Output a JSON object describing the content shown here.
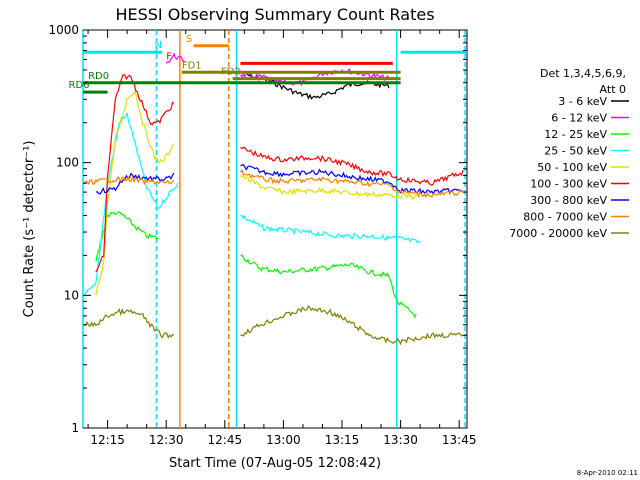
{
  "chart_data": {
    "type": "line",
    "title": "HESSI Observing Summary Count Rates",
    "xlabel": "Start Time (07-Aug-05 12:08:42)",
    "ylabel": "Count Rate (s⁻¹ detector⁻¹)",
    "yscale": "log",
    "ylim": [
      1,
      1000
    ],
    "xlim": [
      "12:08:42",
      "13:47:00"
    ],
    "x_ticks": [
      "12:15",
      "12:30",
      "12:45",
      "13:00",
      "13:15",
      "13:30",
      "13:45"
    ],
    "y_ticks": [
      "1",
      "10",
      "100",
      "1000"
    ],
    "grid": false,
    "legend_title": [
      "Det 1,3,4,5,6,9,",
      "Att 0"
    ],
    "legend_position": "right",
    "series": [
      {
        "name": "3 - 6 keV",
        "color": "#000000",
        "points": [
          [
            "12:49",
            490
          ],
          [
            "12:52",
            440
          ],
          [
            "12:56",
            420
          ],
          [
            "13:00",
            370
          ],
          [
            "13:04",
            330
          ],
          [
            "13:08",
            310
          ],
          [
            "13:12",
            330
          ],
          [
            "13:16",
            380
          ],
          [
            "13:20",
            400
          ],
          [
            "13:27",
            380
          ]
        ]
      },
      {
        "name": "6 - 12 keV",
        "color": "#ff00ff",
        "points": [
          [
            "12:30",
            560
          ],
          [
            "12:32",
            640
          ],
          [
            "12:35",
            580
          ],
          [
            "12:49",
            460
          ],
          [
            "12:55",
            440
          ],
          [
            "13:00",
            400
          ],
          [
            "13:05",
            400
          ],
          [
            "13:10",
            470
          ],
          [
            "13:15",
            500
          ],
          [
            "13:20",
            470
          ],
          [
            "13:27",
            430
          ]
        ]
      },
      {
        "name": "12 - 25 keV",
        "color": "#00ff00",
        "points": [
          [
            "12:12",
            18
          ],
          [
            "12:15",
            40
          ],
          [
            "12:17",
            42
          ],
          [
            "12:19",
            40
          ],
          [
            "12:22",
            33
          ],
          [
            "12:25",
            28
          ],
          [
            "12:28",
            27
          ],
          [
            "12:49",
            20
          ],
          [
            "12:54",
            16
          ],
          [
            "13:00",
            15
          ],
          [
            "13:10",
            16
          ],
          [
            "13:17",
            17
          ],
          [
            "13:22",
            15
          ],
          [
            "13:27",
            14
          ],
          [
            "13:29",
            9
          ],
          [
            "13:34",
            7
          ],
          [
            "13:46",
            7
          ]
        ]
      },
      {
        "name": "25 - 50 keV",
        "color": "#00ffff",
        "points": [
          [
            "12:09",
            10
          ],
          [
            "12:12",
            12
          ],
          [
            "12:15",
            70
          ],
          [
            "12:18",
            200
          ],
          [
            "12:20",
            230
          ],
          [
            "12:22",
            140
          ],
          [
            "12:25",
            65
          ],
          [
            "12:28",
            45
          ],
          [
            "12:30",
            55
          ],
          [
            "12:33",
            70
          ],
          [
            "12:49",
            40
          ],
          [
            "12:55",
            32
          ],
          [
            "13:05",
            30
          ],
          [
            "13:15",
            28
          ],
          [
            "13:22",
            28
          ],
          [
            "13:27",
            27
          ],
          [
            "13:29",
            27
          ],
          [
            "13:35",
            25
          ],
          [
            "13:46",
            26
          ]
        ]
      },
      {
        "name": "50 - 100 keV",
        "color": "#e0e000",
        "points": [
          [
            "12:12",
            10
          ],
          [
            "12:14",
            18
          ],
          [
            "12:15",
            50
          ],
          [
            "12:17",
            150
          ],
          [
            "12:20",
            300
          ],
          [
            "12:22",
            350
          ],
          [
            "12:24",
            200
          ],
          [
            "12:27",
            110
          ],
          [
            "12:29",
            100
          ],
          [
            "12:32",
            140
          ],
          [
            "12:49",
            80
          ],
          [
            "12:55",
            65
          ],
          [
            "13:00",
            60
          ],
          [
            "13:10",
            62
          ],
          [
            "13:20",
            58
          ],
          [
            "13:27",
            57
          ],
          [
            "13:35",
            55
          ],
          [
            "13:46",
            58
          ]
        ]
      },
      {
        "name": "100 - 300 keV",
        "color": "#ff0000",
        "points": [
          [
            "12:12",
            15
          ],
          [
            "12:14",
            20
          ],
          [
            "12:15",
            80
          ],
          [
            "12:17",
            300
          ],
          [
            "12:19",
            450
          ],
          [
            "12:21",
            440
          ],
          [
            "12:23",
            320
          ],
          [
            "12:26",
            200
          ],
          [
            "12:28",
            200
          ],
          [
            "12:30",
            240
          ],
          [
            "12:32",
            280
          ],
          [
            "12:49",
            130
          ],
          [
            "12:55",
            110
          ],
          [
            "13:00",
            105
          ],
          [
            "13:08",
            110
          ],
          [
            "13:15",
            100
          ],
          [
            "13:22",
            85
          ],
          [
            "13:27",
            82
          ],
          [
            "13:30",
            75
          ],
          [
            "13:38",
            70
          ],
          [
            "13:46",
            85
          ]
        ]
      },
      {
        "name": "300 - 800 keV",
        "color": "#0000ff",
        "points": [
          [
            "12:12",
            60
          ],
          [
            "12:15",
            62
          ],
          [
            "12:17",
            64
          ],
          [
            "12:19",
            75
          ],
          [
            "12:21",
            80
          ],
          [
            "12:23",
            78
          ],
          [
            "12:26",
            76
          ],
          [
            "12:28",
            75
          ],
          [
            "12:30",
            75
          ],
          [
            "12:32",
            80
          ],
          [
            "12:49",
            95
          ],
          [
            "12:55",
            85
          ],
          [
            "13:00",
            82
          ],
          [
            "13:10",
            85
          ],
          [
            "13:20",
            76
          ],
          [
            "13:27",
            72
          ],
          [
            "13:30",
            62
          ],
          [
            "13:38",
            60
          ],
          [
            "13:46",
            62
          ]
        ]
      },
      {
        "name": "800 - 7000 keV",
        "color": "#ff8000",
        "points": [
          [
            "12:09",
            70
          ],
          [
            "12:12",
            72
          ],
          [
            "12:15",
            74
          ],
          [
            "12:18",
            75
          ],
          [
            "12:21",
            75
          ],
          [
            "12:24",
            72
          ],
          [
            "12:27",
            72
          ],
          [
            "12:30",
            70
          ],
          [
            "12:32",
            72
          ],
          [
            "12:49",
            85
          ],
          [
            "12:55",
            75
          ],
          [
            "13:00",
            72
          ],
          [
            "13:10",
            75
          ],
          [
            "13:20",
            70
          ],
          [
            "13:27",
            68
          ],
          [
            "13:30",
            60
          ],
          [
            "13:38",
            57
          ],
          [
            "13:46",
            60
          ]
        ]
      },
      {
        "name": "7000 - 20000 keV",
        "color": "#808000",
        "points": [
          [
            "12:09",
            6
          ],
          [
            "12:12",
            6
          ],
          [
            "12:15",
            7
          ],
          [
            "12:18",
            7.5
          ],
          [
            "12:21",
            7.5
          ],
          [
            "12:24",
            7
          ],
          [
            "12:27",
            5.5
          ],
          [
            "12:29",
            5
          ],
          [
            "12:32",
            5
          ],
          [
            "12:49",
            5
          ],
          [
            "12:54",
            6
          ],
          [
            "13:00",
            7
          ],
          [
            "13:06",
            8
          ],
          [
            "13:12",
            7.5
          ],
          [
            "13:18",
            6
          ],
          [
            "13:22",
            5
          ],
          [
            "13:27",
            4.5
          ],
          [
            "13:30",
            4.5
          ],
          [
            "13:38",
            5
          ],
          [
            "13:46",
            5
          ]
        ]
      }
    ],
    "flags": [
      {
        "label": "N",
        "color": "#00e0ff",
        "y": 680,
        "start": "12:08:42",
        "end": "12:29",
        "label_at": "12:27"
      },
      {
        "label": "N",
        "color": "#00e0ff",
        "y": 680,
        "start": "13:30",
        "end": "13:47",
        "label_at": ""
      },
      {
        "label": "S",
        "color": "#ff8000",
        "y": 760,
        "start": "12:37",
        "end": "12:46",
        "label_at": "12:35"
      },
      {
        "label": "F",
        "color": "#ff0000",
        "y": 560,
        "start": "12:49",
        "end": "13:28",
        "label_at": "12:30"
      },
      {
        "label": "FD1",
        "color": "#808000",
        "y": 480,
        "start": "12:34",
        "end": "13:30",
        "label_at": "12:34"
      },
      {
        "label": "FD2",
        "color": "#808000",
        "y": 430,
        "start": "12:47",
        "end": "13:30",
        "label_at": "12:44"
      },
      {
        "label": "RD0",
        "color": "#008000",
        "y": 400,
        "start": "12:08:42",
        "end": "13:30",
        "label_at": "12:10"
      },
      {
        "label": "RD6",
        "color": "#008000",
        "y": 340,
        "start": "12:08:42",
        "end": "12:15",
        "label_at": "12:05"
      }
    ],
    "gaps": [
      {
        "start": "12:08:42",
        "color": "#00e0ff",
        "style": "solid"
      },
      {
        "start": "12:27:30",
        "color": "#00e0ff",
        "style": "dashed"
      },
      {
        "start": "12:33:30",
        "color": "#ff8000",
        "style": "solid"
      },
      {
        "start": "12:46:00",
        "color": "#ff8000",
        "style": "dashed"
      },
      {
        "start": "12:48:00",
        "color": "#00e0ff",
        "style": "solid"
      },
      {
        "start": "13:29:00",
        "color": "#00e0ff",
        "style": "solid"
      },
      {
        "start": "13:46:30",
        "color": "#00e0ff",
        "style": "dashed"
      }
    ],
    "footer_date": "8-Apr-2010 02:11"
  }
}
